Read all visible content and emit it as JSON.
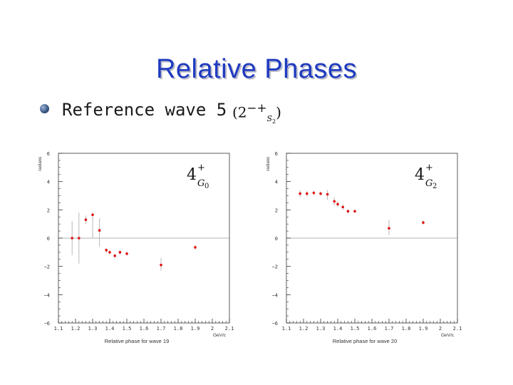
{
  "slide": {
    "title": "Relative Phases",
    "subtitle": "Reference wave 5",
    "formula_main": "(2",
    "formula_sup": "−+",
    "formula_sub": "S",
    "formula_sub2": "2",
    "formula_close": ")"
  },
  "chart_data": [
    {
      "type": "scatter",
      "title": "",
      "wave_label_base": "4",
      "wave_label_sup": "+",
      "wave_label_sub": "G",
      "wave_label_sub_num": "0",
      "xlabel": "Relative phase for wave 19",
      "x_unit": "GeV/c",
      "ylabel": "radians",
      "xlim": [
        1.1,
        2.1
      ],
      "ylim": [
        -6,
        6
      ],
      "xticks": [
        "1.1",
        "1.2",
        "1.3",
        "1.4",
        "1.5",
        "1.6",
        "1.7",
        "1.8",
        "1.9",
        "2",
        "2.1"
      ],
      "yticks": [
        "−6",
        "−4",
        "−2",
        "0",
        "2",
        "4",
        "6"
      ],
      "points": [
        {
          "x": 1.18,
          "y": 0.0,
          "lo": -1.2,
          "hi": 1.2
        },
        {
          "x": 1.22,
          "y": 0.0,
          "lo": -1.8,
          "hi": 1.8
        },
        {
          "x": 1.26,
          "y": 1.3,
          "lo": 1.0,
          "hi": 1.6
        },
        {
          "x": 1.3,
          "y": 1.65,
          "lo": 0.0,
          "hi": 1.8
        },
        {
          "x": 1.34,
          "y": 0.55,
          "lo": -0.6,
          "hi": 1.4
        },
        {
          "x": 1.38,
          "y": -0.85,
          "lo": -1.05,
          "hi": -0.7
        },
        {
          "x": 1.4,
          "y": -1.0,
          "lo": -1.15,
          "hi": -0.85
        },
        {
          "x": 1.43,
          "y": -1.25,
          "lo": -1.4,
          "hi": -1.1
        },
        {
          "x": 1.46,
          "y": -1.0,
          "lo": -1.15,
          "hi": -0.85
        },
        {
          "x": 1.5,
          "y": -1.1,
          "lo": -1.25,
          "hi": -0.95
        },
        {
          "x": 1.7,
          "y": -1.9,
          "lo": -2.3,
          "hi": -1.4
        },
        {
          "x": 1.9,
          "y": -0.65,
          "lo": -0.8,
          "hi": -0.5
        }
      ]
    },
    {
      "type": "scatter",
      "title": "",
      "wave_label_base": "4",
      "wave_label_sup": "+",
      "wave_label_sub": "G",
      "wave_label_sub_num": "2",
      "xlabel": "Relative phase for wave 20",
      "x_unit": "GeV/c",
      "ylabel": "radians",
      "xlim": [
        1.1,
        2.1
      ],
      "ylim": [
        -6,
        6
      ],
      "xticks": [
        "1.1",
        "1.2",
        "1.3",
        "1.4",
        "1.5",
        "1.6",
        "1.7",
        "1.8",
        "1.9",
        "2",
        "2.1"
      ],
      "yticks": [
        "−6",
        "−4",
        "−2",
        "0",
        "2",
        "4",
        "6"
      ],
      "points": [
        {
          "x": 1.18,
          "y": 3.15,
          "lo": 2.9,
          "hi": 3.4
        },
        {
          "x": 1.22,
          "y": 3.15,
          "lo": 2.95,
          "hi": 3.35
        },
        {
          "x": 1.26,
          "y": 3.2,
          "lo": 3.05,
          "hi": 3.35
        },
        {
          "x": 1.3,
          "y": 3.15,
          "lo": 3.0,
          "hi": 3.3
        },
        {
          "x": 1.34,
          "y": 3.1,
          "lo": 2.7,
          "hi": 3.4
        },
        {
          "x": 1.38,
          "y": 2.6,
          "lo": 2.3,
          "hi": 2.9
        },
        {
          "x": 1.4,
          "y": 2.4,
          "lo": 2.2,
          "hi": 2.6
        },
        {
          "x": 1.43,
          "y": 2.2,
          "lo": 2.0,
          "hi": 2.4
        },
        {
          "x": 1.46,
          "y": 1.9,
          "lo": 1.75,
          "hi": 2.05
        },
        {
          "x": 1.5,
          "y": 1.9,
          "lo": 1.8,
          "hi": 2.0
        },
        {
          "x": 1.7,
          "y": 0.7,
          "lo": 0.2,
          "hi": 1.3
        },
        {
          "x": 1.9,
          "y": 1.1,
          "lo": 0.95,
          "hi": 1.25
        }
      ]
    }
  ]
}
